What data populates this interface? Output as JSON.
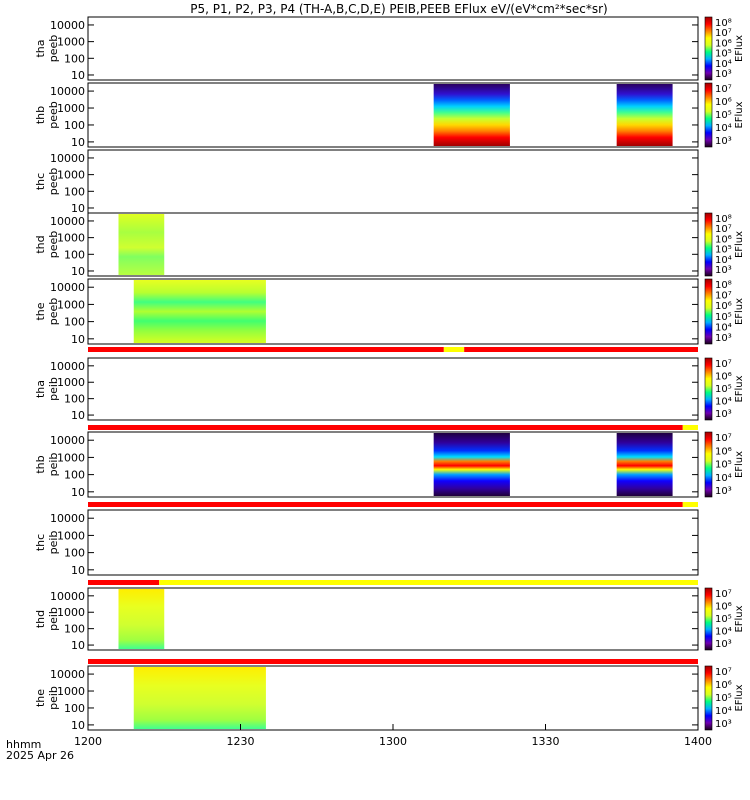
{
  "title": "P5, P1, P2, P3, P4 (TH-A,B,C,D,E) PEIB,PEEB EFlux eV/(eV*cm²*sec*sr)",
  "footer": {
    "xlabel": "hhmm",
    "date": "2025 Apr 26"
  },
  "chart_data": {
    "type": "heatmap",
    "x_axis": {
      "label": "hhmm",
      "ticks": [
        "1200",
        "1230",
        "1300",
        "1330",
        "1400"
      ],
      "range_min": [
        0,
        120
      ]
    },
    "colormap": [
      "#1a001a",
      "#7000b0",
      "#0000ff",
      "#00b0ff",
      "#00ff80",
      "#d8ff20",
      "#ffff00",
      "#ff8000",
      "#ff0000",
      "#a00000"
    ],
    "panels": [
      {
        "id": "tha-peeb",
        "label_top": "tha",
        "label_bottom": "peeb",
        "ylog": true,
        "yticks": [
          "10",
          "100",
          "1000",
          "10000"
        ],
        "cb_ticks": [
          "10³",
          "10⁴",
          "10⁵",
          "10⁶",
          "10⁷",
          "10⁸"
        ],
        "cb_label": "EFlux",
        "blocks": []
      },
      {
        "id": "thb-peeb",
        "label_top": "thb",
        "label_bottom": "peeb",
        "ylog": true,
        "yticks": [
          "10",
          "100",
          "1000",
          "10000"
        ],
        "cb_ticks": [
          "10³",
          "10⁴",
          "10⁵",
          "10⁶",
          "10⁷"
        ],
        "cb_label": "EFlux",
        "blocks": [
          {
            "x0": 68,
            "x1": 83,
            "style": "electron_burst"
          },
          {
            "x0": 104,
            "x1": 115,
            "style": "electron_burst"
          }
        ]
      },
      {
        "id": "thc-peeb",
        "label_top": "thc",
        "label_bottom": "peeb",
        "ylog": true,
        "yticks": [
          "10",
          "100",
          "1000",
          "10000"
        ],
        "cb_ticks": [],
        "cb_label": "",
        "blocks": []
      },
      {
        "id": "thd-peeb",
        "label_top": "thd",
        "label_bottom": "peeb",
        "ylog": true,
        "yticks": [
          "10",
          "100",
          "1000",
          "10000"
        ],
        "cb_ticks": [
          "10³",
          "10⁴",
          "10⁵",
          "10⁶",
          "10⁷",
          "10⁸"
        ],
        "cb_label": "EFlux",
        "blocks": [
          {
            "x0": 6,
            "x1": 15,
            "style": "green_yellow"
          }
        ]
      },
      {
        "id": "the-peeb",
        "label_top": "the",
        "label_bottom": "peeb",
        "ylog": true,
        "yticks": [
          "10",
          "100",
          "1000",
          "10000"
        ],
        "cb_ticks": [
          "10³",
          "10⁴",
          "10⁵",
          "10⁶",
          "10⁷",
          "10⁸"
        ],
        "cb_label": "EFlux",
        "blocks": [
          {
            "x0": 9,
            "x1": 35,
            "style": "green_band"
          }
        ]
      },
      {
        "id": "tha-peib",
        "label_top": "tha",
        "label_bottom": "peib",
        "ylog": true,
        "yticks": [
          "10",
          "100",
          "1000",
          "10000"
        ],
        "cb_ticks": [
          "10³",
          "10⁴",
          "10⁵",
          "10⁶",
          "10⁷"
        ],
        "cb_label": "EFlux",
        "blocks": []
      },
      {
        "id": "thb-peib",
        "label_top": "thb",
        "label_bottom": "peib",
        "ylog": true,
        "yticks": [
          "10",
          "100",
          "1000",
          "10000"
        ],
        "cb_ticks": [
          "10³",
          "10⁴",
          "10⁵",
          "10⁶",
          "10⁷"
        ],
        "cb_label": "EFlux",
        "blocks": [
          {
            "x0": 68,
            "x1": 83,
            "style": "ion_burst"
          },
          {
            "x0": 104,
            "x1": 115,
            "style": "ion_burst"
          }
        ]
      },
      {
        "id": "thc-peib",
        "label_top": "thc",
        "label_bottom": "peib",
        "ylog": true,
        "yticks": [
          "10",
          "100",
          "1000",
          "10000"
        ],
        "cb_ticks": [],
        "cb_label": "",
        "blocks": []
      },
      {
        "id": "thd-peib",
        "label_top": "thd",
        "label_bottom": "peib",
        "ylog": true,
        "yticks": [
          "10",
          "100",
          "1000",
          "10000"
        ],
        "cb_ticks": [
          "10³",
          "10⁴",
          "10⁵",
          "10⁶",
          "10⁷"
        ],
        "cb_label": "EFlux",
        "blocks": [
          {
            "x0": 6,
            "x1": 15,
            "style": "ion_yellow"
          }
        ]
      },
      {
        "id": "the-peib",
        "label_top": "the",
        "label_bottom": "peib",
        "ylog": true,
        "yticks": [
          "10",
          "100",
          "1000",
          "10000"
        ],
        "cb_ticks": [
          "10³",
          "10⁴",
          "10⁵",
          "10⁶",
          "10⁷"
        ],
        "cb_label": "EFlux",
        "blocks": [
          {
            "x0": 9,
            "x1": 35,
            "style": "ion_yellow"
          }
        ]
      }
    ],
    "strips": [
      {
        "after_panel": 4,
        "segments": [
          {
            "x0": 0,
            "x1": 70,
            "color": "#ff0000"
          },
          {
            "x0": 70,
            "x1": 74,
            "color": "#ffff00"
          },
          {
            "x0": 74,
            "x1": 120,
            "color": "#ff0000"
          }
        ]
      },
      {
        "after_panel": 5,
        "segments": [
          {
            "x0": 0,
            "x1": 117,
            "color": "#ff0000"
          },
          {
            "x0": 117,
            "x1": 120,
            "color": "#ffff00"
          }
        ]
      },
      {
        "after_panel": 6,
        "segments": [
          {
            "x0": 0,
            "x1": 117,
            "color": "#ff0000"
          },
          {
            "x0": 117,
            "x1": 120,
            "color": "#ffff00"
          }
        ]
      },
      {
        "after_panel": 7,
        "segments": [
          {
            "x0": 0,
            "x1": 14,
            "color": "#ff0000"
          },
          {
            "x0": 14,
            "x1": 120,
            "color": "#ffff00"
          }
        ]
      },
      {
        "after_panel": 8,
        "segments": [
          {
            "x0": 0,
            "x1": 120,
            "color": "#ff0000"
          }
        ]
      }
    ]
  }
}
